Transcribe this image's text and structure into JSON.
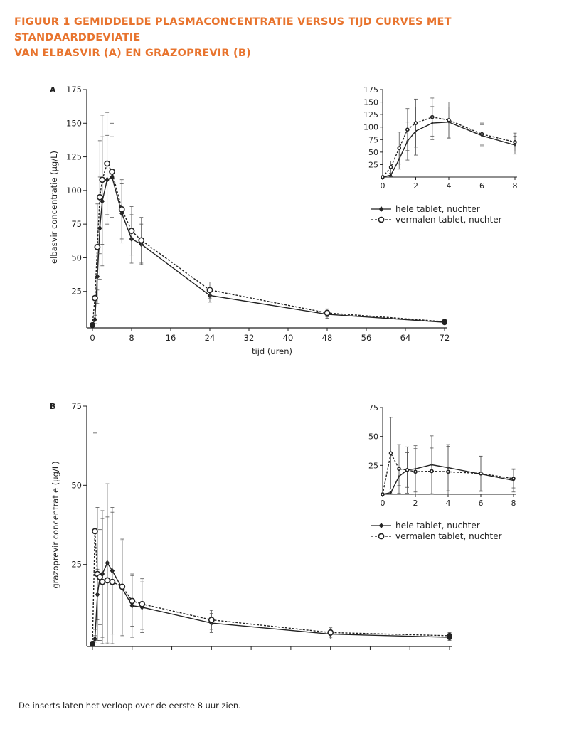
{
  "figure": {
    "title_line1": "FIGUUR 1  GEMIDDELDE PLASMACONCENTRATIE VERSUS TIJD CURVES MET STANDAARDDEVIATIE",
    "title_line2": "VAN ELBASVIR (A) EN GRAZOPREVIR (B)",
    "footnote": "De inserts laten het verloop over de eerste 8 uur zien.",
    "accent_color": "#e8742e",
    "line_color": "#222222"
  },
  "chart_data": [
    {
      "type": "line",
      "panel": "A",
      "xlabel": "tijd (uren)",
      "ylabel": "elbasvir concentratie (µg/L)",
      "xlim": [
        0,
        72
      ],
      "ylim": [
        0,
        175
      ],
      "xticks": [
        0,
        8,
        16,
        24,
        32,
        40,
        48,
        56,
        64,
        72
      ],
      "yticks": [
        25,
        50,
        75,
        100,
        125,
        150,
        175
      ],
      "error_bars": "standard deviation",
      "legend_position": "right, below inset",
      "series": [
        {
          "name": "hele tablet, nuchter",
          "marker": "filled-diamond",
          "line": "solid",
          "x": [
            0,
            0.5,
            1,
            1.5,
            2,
            3,
            4,
            6,
            8,
            10,
            24,
            48,
            72
          ],
          "y": [
            0,
            4,
            36,
            72,
            92,
            108,
            110,
            83,
            64,
            60,
            22,
            8,
            2
          ],
          "sd": [
            0,
            3,
            20,
            38,
            48,
            33,
            30,
            22,
            18,
            15,
            5,
            3,
            1
          ]
        },
        {
          "name": "vermalen tablet, nuchter",
          "marker": "open-circle",
          "line": "dashed",
          "x": [
            0,
            0.5,
            1,
            1.5,
            2,
            3,
            4,
            6,
            8,
            10,
            24,
            48,
            72
          ],
          "y": [
            0,
            20,
            58,
            95,
            108,
            120,
            114,
            86,
            70,
            63,
            26,
            9,
            2.5
          ],
          "sd": [
            0,
            12,
            32,
            42,
            48,
            38,
            36,
            22,
            18,
            17,
            6,
            3,
            1
          ]
        }
      ],
      "inset": {
        "xlim": [
          0,
          8
        ],
        "ylim": [
          0,
          175
        ],
        "xticks": [
          0,
          2,
          4,
          6,
          8
        ],
        "yticks": [
          25,
          50,
          75,
          100,
          125,
          150,
          175
        ]
      }
    },
    {
      "type": "line",
      "panel": "B",
      "xlabel": "tijd (uren)",
      "ylabel": "grazoprevir concentratie (µg/L)",
      "xlim": [
        0,
        72
      ],
      "ylim": [
        0,
        75
      ],
      "xticks": [
        0,
        8,
        16,
        24,
        32,
        40,
        48,
        56,
        64,
        72
      ],
      "yticks": [
        25,
        50,
        75
      ],
      "error_bars": "standard deviation",
      "legend_position": "right, below inset",
      "series": [
        {
          "name": "hele tablet, nuchter",
          "marker": "filled-diamond",
          "line": "solid",
          "x": [
            0,
            0.5,
            1,
            1.5,
            2,
            3,
            4,
            6,
            8,
            10,
            24,
            48,
            72
          ],
          "y": [
            0,
            1.5,
            15.5,
            21,
            22,
            25.5,
            23,
            17.5,
            12,
            11.5,
            6.5,
            3,
            2
          ],
          "sd": [
            0,
            1,
            8,
            15,
            20,
            25,
            20,
            15,
            10,
            8,
            3,
            1.5,
            1
          ]
        },
        {
          "name": "vermalen tablet, nuchter",
          "marker": "open-circle",
          "line": "dashed",
          "x": [
            0,
            0.5,
            1,
            1.5,
            2,
            3,
            4,
            6,
            8,
            10,
            24,
            48,
            72
          ],
          "y": [
            0,
            35.5,
            22,
            21,
            19.5,
            20,
            19.5,
            18,
            13.5,
            12.5,
            7.5,
            3.5,
            2.5
          ],
          "sd": [
            0,
            31,
            21,
            20,
            20,
            20,
            22,
            15,
            8,
            8,
            3,
            1.5,
            1
          ]
        }
      ],
      "inset": {
        "xlim": [
          0,
          8
        ],
        "ylim": [
          0,
          75
        ],
        "xticks": [
          0,
          2,
          4,
          6,
          8
        ],
        "yticks": [
          25,
          50,
          75
        ]
      }
    }
  ]
}
